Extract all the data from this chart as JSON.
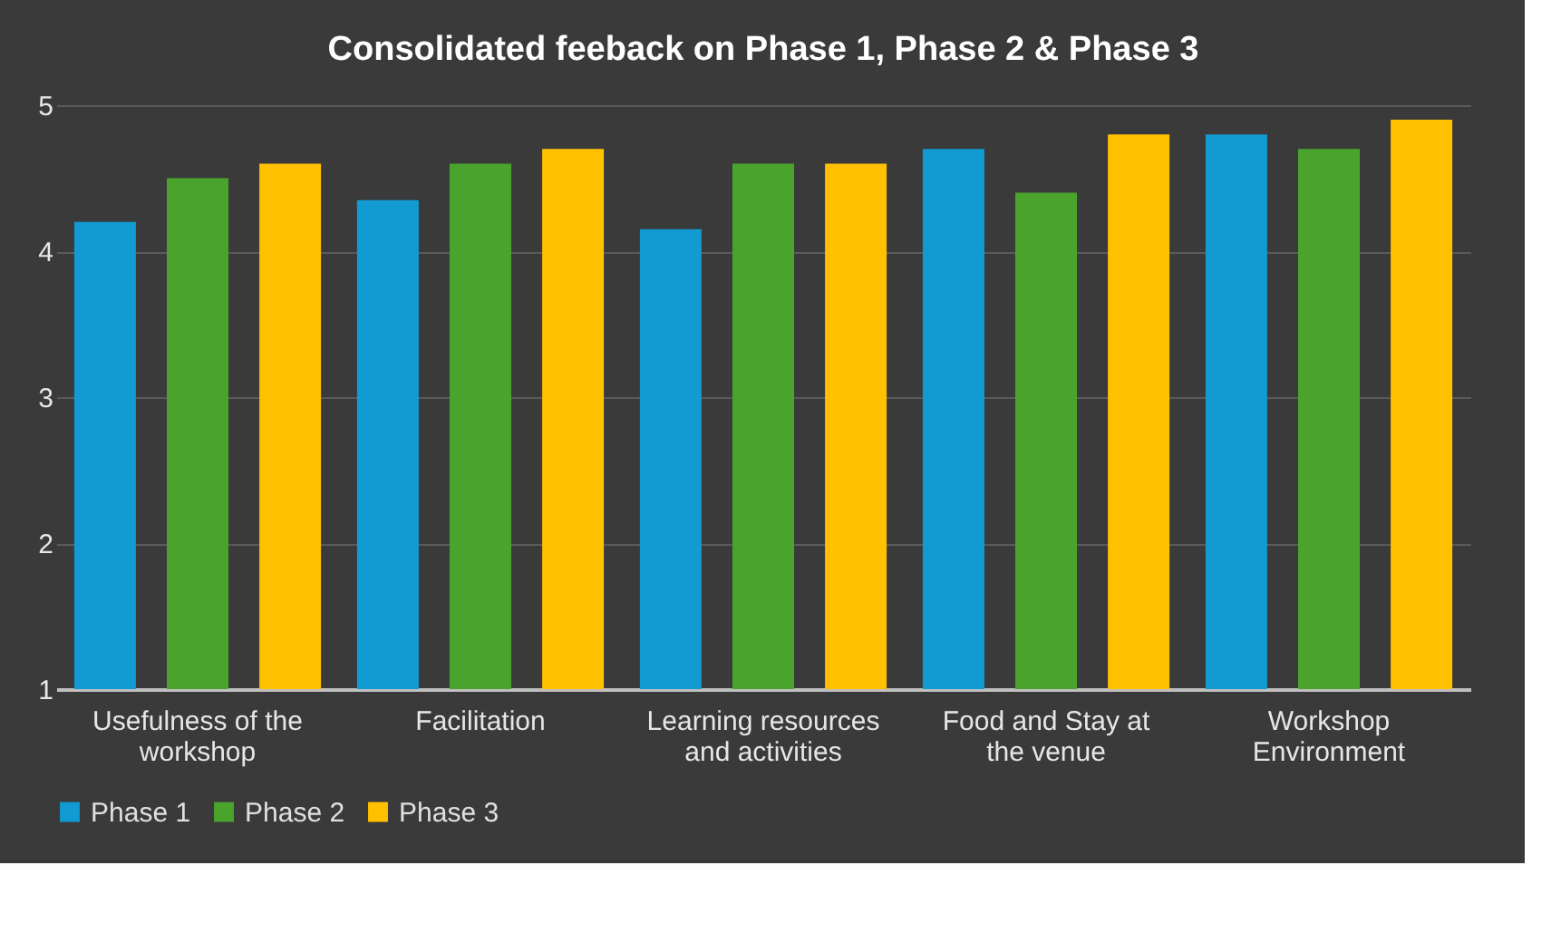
{
  "chart_data": {
    "type": "bar",
    "title": "Consolidated feeback on Phase 1, Phase 2 & Phase 3",
    "categories": [
      "Usefulness of the workshop",
      "Facilitation",
      "Learning resources and activities",
      "Food and Stay at the venue",
      "Workshop Environment"
    ],
    "series": [
      {
        "name": "Phase 1",
        "color": "#119bd2",
        "values": [
          4.2,
          4.35,
          4.15,
          4.7,
          4.8
        ]
      },
      {
        "name": "Phase 2",
        "color": "#4aa32d",
        "values": [
          4.5,
          4.6,
          4.6,
          4.4,
          4.7
        ]
      },
      {
        "name": "Phase 3",
        "color": "#ffc000",
        "values": [
          4.6,
          4.7,
          4.6,
          4.8,
          4.9
        ]
      }
    ],
    "ylim": [
      1,
      5
    ],
    "yticks": [
      1,
      2,
      3,
      4,
      5
    ],
    "grid": "y",
    "legend": "bottom"
  }
}
